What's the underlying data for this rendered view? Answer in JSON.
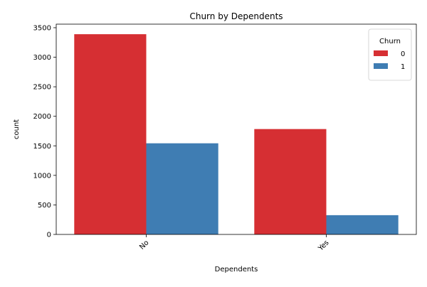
{
  "chart_data": {
    "type": "bar",
    "title": "Churn by Dependents",
    "xlabel": "Dependents",
    "ylabel": "count",
    "categories": [
      "No",
      "Yes"
    ],
    "series": [
      {
        "name": "0",
        "values": [
          3390,
          1784
        ],
        "color": "#d62f33"
      },
      {
        "name": "1",
        "values": [
          1543,
          326
        ],
        "color": "#3f7db3"
      }
    ],
    "ylim": [
      0,
      3560
    ],
    "yticks": [
      0,
      500,
      1000,
      1500,
      2000,
      2500,
      3000,
      3500
    ],
    "legend": {
      "title": "Churn",
      "placement": "top-right"
    },
    "grid": false,
    "xtick_rotation": 45
  }
}
